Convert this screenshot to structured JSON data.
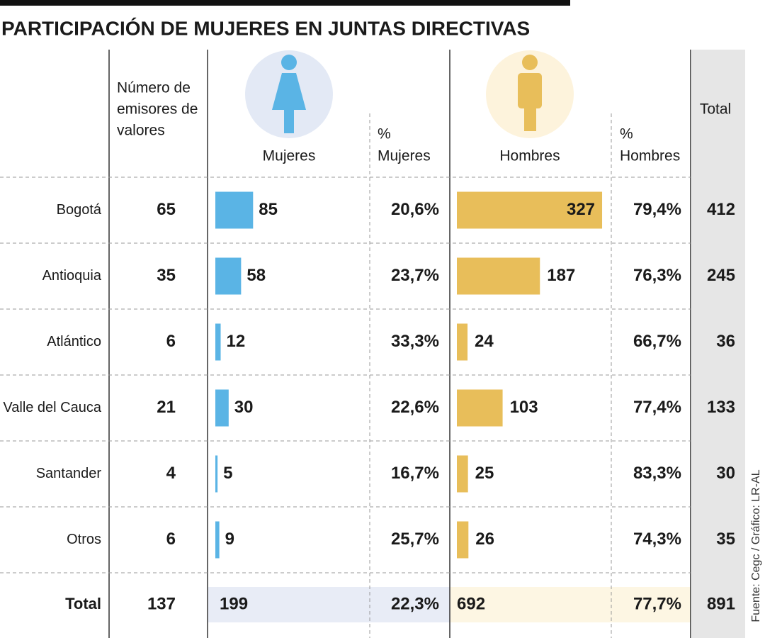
{
  "title": "PARTICIPACIÓN DE MUJERES EN JUNTAS DIRECTIVAS",
  "header": {
    "emisores": [
      "Número de",
      "emisores de",
      "valores"
    ],
    "mujeres": "Mujeres",
    "pct_mujeres": [
      "%",
      "Mujeres"
    ],
    "hombres": "Hombres",
    "pct_hombres": [
      "%",
      "Hombres"
    ],
    "total": "Total"
  },
  "rows": [
    {
      "region": "Bogotá",
      "emisores": 65,
      "mujeres": 85,
      "pct_mujeres": "20,6%",
      "hombres": 327,
      "pct_hombres": "79,4%",
      "total": 412
    },
    {
      "region": "Antioquia",
      "emisores": 35,
      "mujeres": 58,
      "pct_mujeres": "23,7%",
      "hombres": 187,
      "pct_hombres": "76,3%",
      "total": 245
    },
    {
      "region": "Atlántico",
      "emisores": 6,
      "mujeres": 12,
      "pct_mujeres": "33,3%",
      "hombres": 24,
      "pct_hombres": "66,7%",
      "total": 36
    },
    {
      "region": "Valle del Cauca",
      "emisores": 21,
      "mujeres": 30,
      "pct_mujeres": "22,6%",
      "hombres": 103,
      "pct_hombres": "77,4%",
      "total": 133
    },
    {
      "region": "Santander",
      "emisores": 4,
      "mujeres": 5,
      "pct_mujeres": "16,7%",
      "hombres": 25,
      "pct_hombres": "83,3%",
      "total": 30
    },
    {
      "region": "Otros",
      "emisores": 6,
      "mujeres": 9,
      "pct_mujeres": "25,7%",
      "hombres": 26,
      "pct_hombres": "74,3%",
      "total": 35
    }
  ],
  "total_row": {
    "region": "Total",
    "emisores": 137,
    "mujeres": 199,
    "pct_mujeres": "22,3%",
    "hombres": 692,
    "pct_hombres": "77,7%",
    "total": 891
  },
  "source": "Fuente: Cegc / Gráfico: LR-AL"
}
